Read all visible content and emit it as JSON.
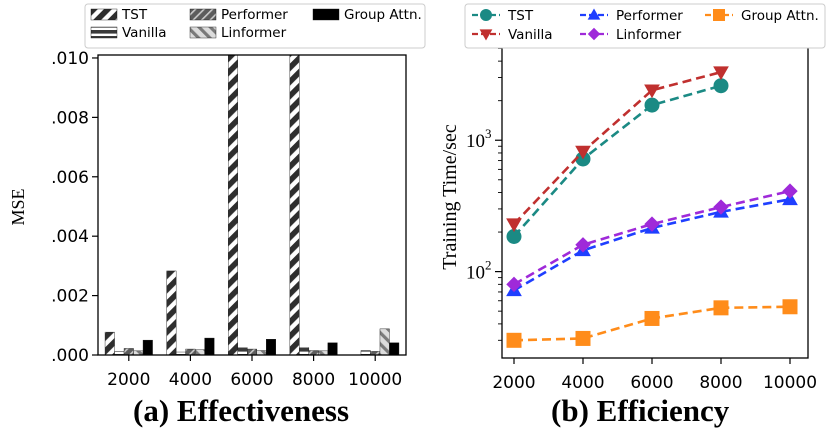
{
  "chart_data": [
    {
      "type": "bar",
      "title": "(a) Effectiveness",
      "xlabel": "",
      "ylabel": "MSE",
      "categories": [
        "2000",
        "4000",
        "6000",
        "8000",
        "10000"
      ],
      "yticks": [
        ".000",
        ".002",
        ".004",
        ".006",
        ".008",
        ".010"
      ],
      "ylim": [
        0,
        0.0101
      ],
      "legend": [
        "TST",
        "Vanilla",
        "Performer",
        "Linformer",
        "Group Attn."
      ],
      "series": [
        {
          "name": "TST",
          "values": [
            0.00077,
            0.00283,
            0.0101,
            0.0101,
            null
          ]
        },
        {
          "name": "Vanilla",
          "values": [
            0.00012,
            0.0001,
            0.00025,
            0.00025,
            0.00015
          ]
        },
        {
          "name": "Performer",
          "values": [
            0.00022,
            0.0002,
            0.0002,
            0.00015,
            0.00012
          ]
        },
        {
          "name": "Linformer",
          "values": [
            0.00014,
            0.00018,
            0.00015,
            0.00014,
            0.00088
          ]
        },
        {
          "name": "Group Attn.",
          "values": [
            0.0005,
            0.00057,
            0.00053,
            0.00041,
            0.00041
          ]
        }
      ]
    },
    {
      "type": "line",
      "title": "(b) Efficiency",
      "xlabel": "",
      "ylabel": "Training Time/sec",
      "yscale": "log",
      "x": [
        2000,
        4000,
        6000,
        8000,
        10000
      ],
      "xticks": [
        "2000",
        "4000",
        "6000",
        "8000",
        "10000"
      ],
      "ytick_labels": [
        {
          "base": "10",
          "exp": "2",
          "value": 100
        },
        {
          "base": "10",
          "exp": "3",
          "value": 1000
        }
      ],
      "ylim": [
        22,
        6000
      ],
      "series": [
        {
          "name": "TST",
          "values": [
            185,
            720,
            1850,
            2600,
            null
          ],
          "color": "#1b8a84",
          "marker": "circle"
        },
        {
          "name": "Vanilla",
          "values": [
            230,
            820,
            2400,
            3300,
            null
          ],
          "color": "#c0302f",
          "marker": "triangle-down"
        },
        {
          "name": "Performer",
          "values": [
            72,
            145,
            215,
            285,
            355
          ],
          "color": "#1f3fff",
          "marker": "triangle-up"
        },
        {
          "name": "Linformer",
          "values": [
            80,
            160,
            230,
            310,
            410
          ],
          "color": "#9f2ad9",
          "marker": "diamond"
        },
        {
          "name": "Group Attn.",
          "values": [
            30,
            31,
            44,
            53,
            54
          ],
          "color": "#ff8c1a",
          "marker": "square"
        }
      ]
    }
  ]
}
